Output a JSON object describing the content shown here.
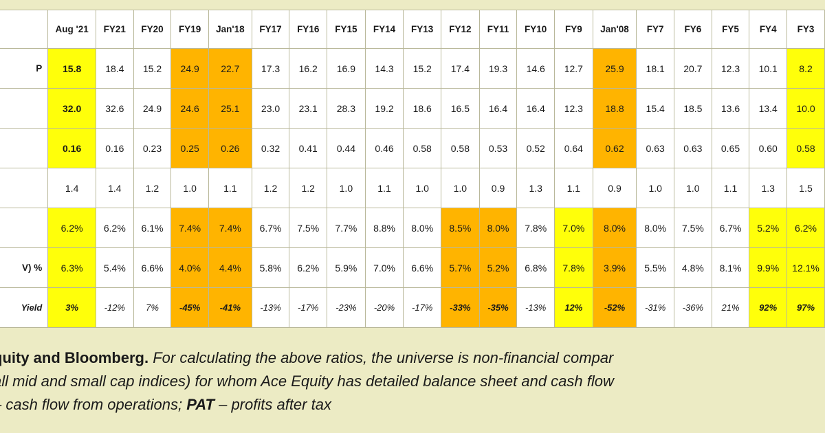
{
  "table": {
    "headers": [
      "Aug '21",
      "FY21",
      "FY20",
      "FY19",
      "Jan'18",
      "FY17",
      "FY16",
      "FY15",
      "FY14",
      "FY13",
      "FY12",
      "FY11",
      "FY10",
      "FY9",
      "Jan'08",
      "FY7",
      "FY6",
      "FY5",
      "FY4",
      "FY3"
    ],
    "rows": [
      {
        "label": "P",
        "cells": [
          "15.8",
          "18.4",
          "15.2",
          "24.9",
          "22.7",
          "17.3",
          "16.2",
          "16.9",
          "14.3",
          "15.2",
          "17.4",
          "19.3",
          "14.6",
          "12.7",
          "25.9",
          "18.1",
          "20.7",
          "12.3",
          "10.1",
          "8.2"
        ],
        "styles": [
          "yb",
          "",
          "",
          "o",
          "o",
          "",
          "",
          "",
          "",
          "",
          "",
          "",
          "",
          "",
          "o",
          "",
          "",
          "",
          "",
          "y"
        ]
      },
      {
        "label": "",
        "cells": [
          "32.0",
          "32.6",
          "24.9",
          "24.6",
          "25.1",
          "23.0",
          "23.1",
          "28.3",
          "19.2",
          "18.6",
          "16.5",
          "16.4",
          "16.4",
          "12.3",
          "18.8",
          "15.4",
          "18.5",
          "13.6",
          "13.4",
          "10.0"
        ],
        "styles": [
          "yb",
          "",
          "",
          "o",
          "o",
          "",
          "",
          "",
          "",
          "",
          "",
          "",
          "",
          "",
          "o",
          "",
          "",
          "",
          "",
          "y"
        ]
      },
      {
        "label": "",
        "cells": [
          "0.16",
          "0.16",
          "0.23",
          "0.25",
          "0.26",
          "0.32",
          "0.41",
          "0.44",
          "0.46",
          "0.58",
          "0.58",
          "0.53",
          "0.52",
          "0.64",
          "0.62",
          "0.63",
          "0.63",
          "0.65",
          "0.60",
          "0.58"
        ],
        "styles": [
          "yb",
          "",
          "",
          "o",
          "o",
          "",
          "",
          "",
          "",
          "",
          "",
          "",
          "",
          "",
          "o",
          "",
          "",
          "",
          "",
          "y"
        ]
      },
      {
        "label": "",
        "cells": [
          "1.4",
          "1.4",
          "1.2",
          "1.0",
          "1.1",
          "1.2",
          "1.2",
          "1.0",
          "1.1",
          "1.0",
          "1.0",
          "0.9",
          "1.3",
          "1.1",
          "0.9",
          "1.0",
          "1.0",
          "1.1",
          "1.3",
          "1.5"
        ],
        "styles": [
          "",
          "",
          "",
          "",
          "",
          "",
          "",
          "",
          "",
          "",
          "",
          "",
          "",
          "",
          "",
          "",
          "",
          "",
          "",
          ""
        ]
      },
      {
        "label": "",
        "cells": [
          "6.2%",
          "6.2%",
          "6.1%",
          "7.4%",
          "7.4%",
          "6.7%",
          "7.5%",
          "7.7%",
          "8.8%",
          "8.0%",
          "8.5%",
          "8.0%",
          "7.8%",
          "7.0%",
          "8.0%",
          "8.0%",
          "7.5%",
          "6.7%",
          "5.2%",
          "6.2%"
        ],
        "styles": [
          "y",
          "",
          "",
          "o",
          "o",
          "",
          "",
          "",
          "",
          "",
          "o",
          "o",
          "",
          "y",
          "o",
          "",
          "",
          "",
          "y",
          "y"
        ]
      },
      {
        "label": "V) %",
        "cells": [
          "6.3%",
          "5.4%",
          "6.6%",
          "4.0%",
          "4.4%",
          "5.8%",
          "6.2%",
          "5.9%",
          "7.0%",
          "6.6%",
          "5.7%",
          "5.2%",
          "6.8%",
          "7.8%",
          "3.9%",
          "5.5%",
          "4.8%",
          "8.1%",
          "9.9%",
          "12.1%"
        ],
        "styles": [
          "y",
          "",
          "",
          "o",
          "o",
          "",
          "",
          "",
          "",
          "",
          "o",
          "o",
          "",
          "y",
          "o",
          "",
          "",
          "",
          "y",
          "y"
        ]
      },
      {
        "label": "Yield",
        "cells": [
          "3%",
          "-12%",
          "7%",
          "-45%",
          "-41%",
          "-13%",
          "-17%",
          "-23%",
          "-20%",
          "-17%",
          "-33%",
          "-35%",
          "-13%",
          "12%",
          "-52%",
          "-31%",
          "-36%",
          "21%",
          "92%",
          "97%"
        ],
        "styles": [
          "yb",
          "",
          "",
          "ob",
          "ob",
          "",
          "",
          "",
          "",
          "",
          "ob",
          "ob",
          "",
          "yb",
          "ob",
          "",
          "",
          "",
          "yb",
          "yb"
        ]
      }
    ]
  },
  "colors": {
    "highlight_yellow": "#ffff0a",
    "highlight_orange": "#ffb400",
    "background": "#ecebc4"
  },
  "footnote": {
    "line1_bold": "quity and Bloomberg.",
    "line1_rest": " For calculating the above ratios, the universe is non-financial compar",
    "line2": "all mid and small cap indices) for whom Ace Equity has detailed balance sheet and cash flow",
    "line3_a": "– cash flow from operations; ",
    "line3_bold": "PAT",
    "line3_b": " – profits after tax"
  }
}
